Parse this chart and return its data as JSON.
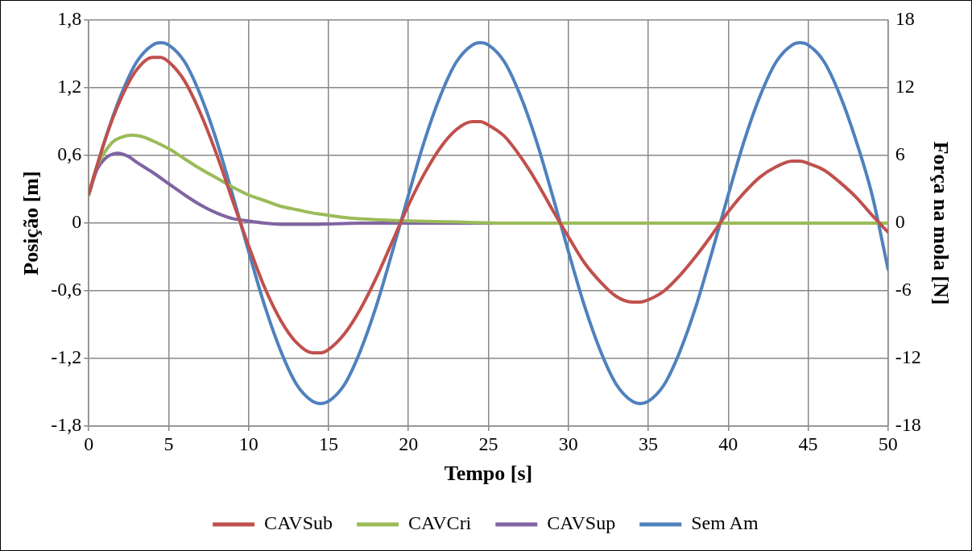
{
  "chart_data": {
    "type": "line",
    "xlabel": "Tempo [s]",
    "ylabel": "Posição [m]",
    "y2label": "Força na mola [N]",
    "xlim": [
      0,
      50
    ],
    "xticks": [
      0,
      5,
      10,
      15,
      20,
      25,
      30,
      35,
      40,
      45,
      50
    ],
    "ylim": [
      -1.8,
      1.8
    ],
    "yticks": [
      {
        "value": -1.8,
        "label": "-1,8"
      },
      {
        "value": -1.2,
        "label": "-1,2"
      },
      {
        "value": -0.6,
        "label": "-0,6"
      },
      0,
      {
        "value": 0.6,
        "label": "0,6"
      },
      {
        "value": 1.2,
        "label": "1,2"
      },
      {
        "value": 1.8,
        "label": "1,8"
      }
    ],
    "y2lim": [
      -18,
      18
    ],
    "y2ticks": [
      -18,
      -12,
      -6,
      0,
      6,
      12,
      18
    ],
    "grid": true,
    "legend": "bottom",
    "marker": "none",
    "line_style": "solid",
    "series": [
      {
        "name": "CAVSub",
        "color": "#c0504d",
        "x": [
          0,
          1,
          2,
          3,
          4,
          4.5,
          5,
          6,
          7,
          8,
          9,
          10,
          11,
          12,
          13,
          14,
          14.5,
          15,
          16,
          17,
          18,
          19,
          20,
          21,
          22,
          23,
          24,
          24.5,
          25,
          26,
          27,
          28,
          29,
          30,
          31,
          32,
          33,
          34,
          34.5,
          35,
          36,
          37,
          38,
          39,
          40,
          41,
          42,
          43,
          44,
          44.5,
          45,
          46,
          47,
          48,
          49,
          50
        ],
        "values": [
          0.26,
          0.73,
          1.1,
          1.36,
          1.47,
          1.47,
          1.43,
          1.26,
          0.97,
          0.61,
          0.2,
          -0.2,
          -0.57,
          -0.86,
          -1.06,
          -1.15,
          -1.15,
          -1.12,
          -0.98,
          -0.76,
          -0.48,
          -0.16,
          0.16,
          0.44,
          0.67,
          0.83,
          0.9,
          0.9,
          0.87,
          0.77,
          0.59,
          0.37,
          0.12,
          -0.12,
          -0.35,
          -0.52,
          -0.65,
          -0.7,
          -0.7,
          -0.68,
          -0.6,
          -0.46,
          -0.29,
          -0.1,
          0.1,
          0.27,
          0.41,
          0.5,
          0.55,
          0.55,
          0.53,
          0.47,
          0.36,
          0.23,
          0.07,
          -0.08
        ]
      },
      {
        "name": "CAVCri",
        "color": "#9bbb59",
        "x": [
          0,
          0.5,
          1,
          1.5,
          2,
          2.7,
          3.5,
          4,
          5,
          6,
          7,
          8,
          9,
          10,
          11,
          12,
          13,
          14,
          15,
          16,
          18,
          20,
          23,
          26,
          50
        ],
        "values": [
          0.25,
          0.5,
          0.63,
          0.72,
          0.76,
          0.78,
          0.76,
          0.73,
          0.66,
          0.57,
          0.48,
          0.4,
          0.32,
          0.25,
          0.2,
          0.15,
          0.12,
          0.09,
          0.07,
          0.05,
          0.03,
          0.02,
          0.01,
          0,
          0
        ]
      },
      {
        "name": "CAVSup",
        "color": "#8064a2",
        "x": [
          0,
          0.5,
          1,
          1.8,
          2.5,
          3,
          4,
          5,
          6,
          7,
          8,
          9,
          10,
          11,
          12,
          14,
          17,
          50
        ],
        "values": [
          0.25,
          0.47,
          0.57,
          0.62,
          0.59,
          0.54,
          0.45,
          0.35,
          0.25,
          0.16,
          0.09,
          0.04,
          0.02,
          0,
          -0.01,
          -0.01,
          0,
          0
        ]
      },
      {
        "name": "Sem Am",
        "color": "#4f81bd",
        "x": [
          0,
          1,
          2,
          3,
          4,
          4.5,
          5,
          6,
          7,
          8,
          9,
          10,
          11,
          12,
          13,
          14,
          14.5,
          15,
          16,
          17,
          18,
          19,
          20,
          21,
          22,
          23,
          24,
          24.5,
          25,
          26,
          27,
          28,
          29,
          30,
          31,
          32,
          33,
          34,
          34.5,
          35,
          36,
          37,
          38,
          39,
          40,
          41,
          42,
          43,
          44,
          44.5,
          45,
          46,
          47,
          48,
          49,
          50
        ],
        "values": [
          0.25,
          0.73,
          1.13,
          1.43,
          1.58,
          1.6,
          1.58,
          1.43,
          1.13,
          0.73,
          0.25,
          -0.25,
          -0.73,
          -1.13,
          -1.43,
          -1.58,
          -1.6,
          -1.58,
          -1.43,
          -1.13,
          -0.73,
          -0.25,
          0.25,
          0.73,
          1.13,
          1.43,
          1.58,
          1.6,
          1.58,
          1.43,
          1.13,
          0.73,
          0.25,
          -0.25,
          -0.73,
          -1.13,
          -1.43,
          -1.58,
          -1.6,
          -1.58,
          -1.43,
          -1.13,
          -0.73,
          -0.25,
          0.25,
          0.73,
          1.13,
          1.43,
          1.58,
          1.6,
          1.58,
          1.43,
          1.13,
          0.73,
          0.25,
          -0.41
        ]
      }
    ]
  }
}
